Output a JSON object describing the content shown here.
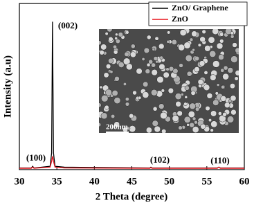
{
  "chart_data": {
    "type": "line",
    "x_label": "2 Theta (degree)",
    "y_label": "Intensity (a.u)",
    "x": [
      30,
      31.6,
      31.77,
      31.95,
      34.1,
      34.3,
      34.42,
      34.55,
      34.75,
      36.0,
      47.4,
      47.54,
      47.7,
      56.4,
      56.6,
      56.8,
      60
    ],
    "series": [
      {
        "name": "ZnO/ Graphene",
        "color": "#000000",
        "values": [
          1,
          1,
          2,
          1,
          2,
          10,
          89,
          10,
          2,
          1.5,
          1,
          1.5,
          1,
          1,
          1.5,
          1,
          1
        ]
      },
      {
        "name": "ZnO",
        "color": "#e8141c",
        "values": [
          0.8,
          0.8,
          1.5,
          0.8,
          1.5,
          5,
          8,
          5,
          1.5,
          1,
          0.8,
          1.2,
          0.8,
          0.8,
          1.5,
          0.8,
          0.8
        ]
      }
    ],
    "xlim": [
      30,
      60
    ],
    "xticks": [
      30,
      35,
      40,
      45,
      50,
      55,
      60
    ],
    "ylim": [
      0,
      100
    ],
    "annotations": [
      "(100)",
      "(002)",
      "(102)",
      "(110)"
    ],
    "inset_label": "200nm"
  }
}
